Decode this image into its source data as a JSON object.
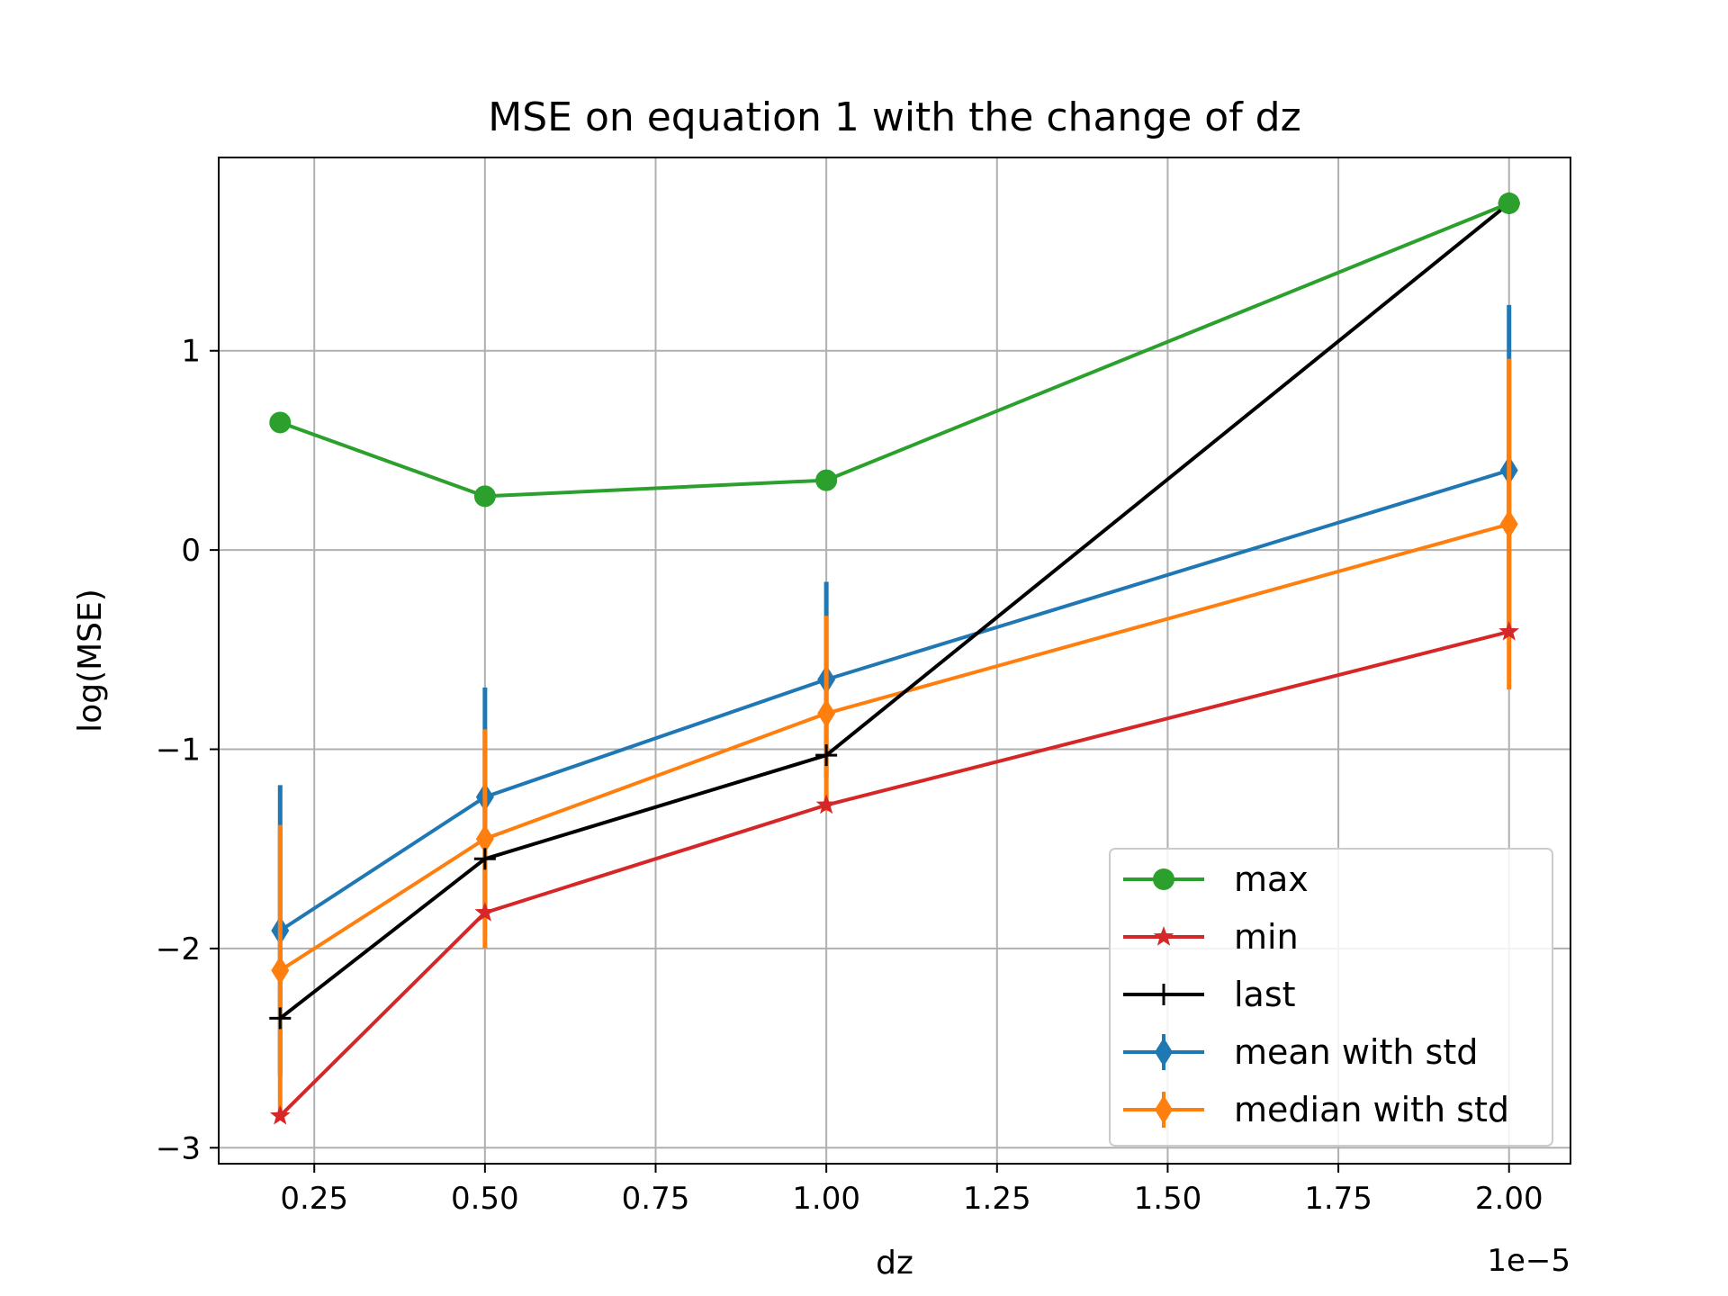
{
  "chart_data": {
    "type": "line",
    "title": "MSE on equation 1 with the change of dz",
    "xlabel": "dz",
    "ylabel": "log(MSE)",
    "x_offset_label": "1e−5",
    "xlim": [
      0.11,
      2.09
    ],
    "ylim": [
      -3.08,
      1.97
    ],
    "xticks": [
      0.25,
      0.5,
      0.75,
      1.0,
      1.25,
      1.5,
      1.75,
      2.0
    ],
    "xtick_labels": [
      "0.25",
      "0.50",
      "0.75",
      "1.00",
      "1.25",
      "1.50",
      "1.75",
      "2.00"
    ],
    "yticks": [
      -3,
      -2,
      -1,
      0,
      1
    ],
    "ytick_labels": [
      "−3",
      "−2",
      "−1",
      "0",
      "1"
    ],
    "grid": true,
    "legend_position": "lower-right",
    "x": [
      0.2,
      0.5,
      1.0,
      2.0
    ],
    "series": [
      {
        "name": "max",
        "color": "#2ca02c",
        "marker": "circle",
        "values": [
          0.64,
          0.27,
          0.35,
          1.74
        ]
      },
      {
        "name": "min",
        "color": "#d62728",
        "marker": "star",
        "values": [
          -2.84,
          -1.82,
          -1.28,
          -0.41
        ]
      },
      {
        "name": "last",
        "color": "#000000",
        "marker": "plus",
        "values": [
          -2.35,
          -1.55,
          -1.03,
          1.74
        ]
      },
      {
        "name": "mean with std",
        "color": "#1f77b4",
        "marker": "diamond",
        "values": [
          -1.91,
          -1.24,
          -0.65,
          0.4
        ],
        "err": [
          0.73,
          0.55,
          0.49,
          0.83
        ]
      },
      {
        "name": "median with std",
        "color": "#ff7f0e",
        "marker": "diamond",
        "values": [
          -2.11,
          -1.45,
          -0.82,
          0.13
        ],
        "err": [
          0.73,
          0.55,
          0.49,
          0.83
        ]
      }
    ]
  }
}
